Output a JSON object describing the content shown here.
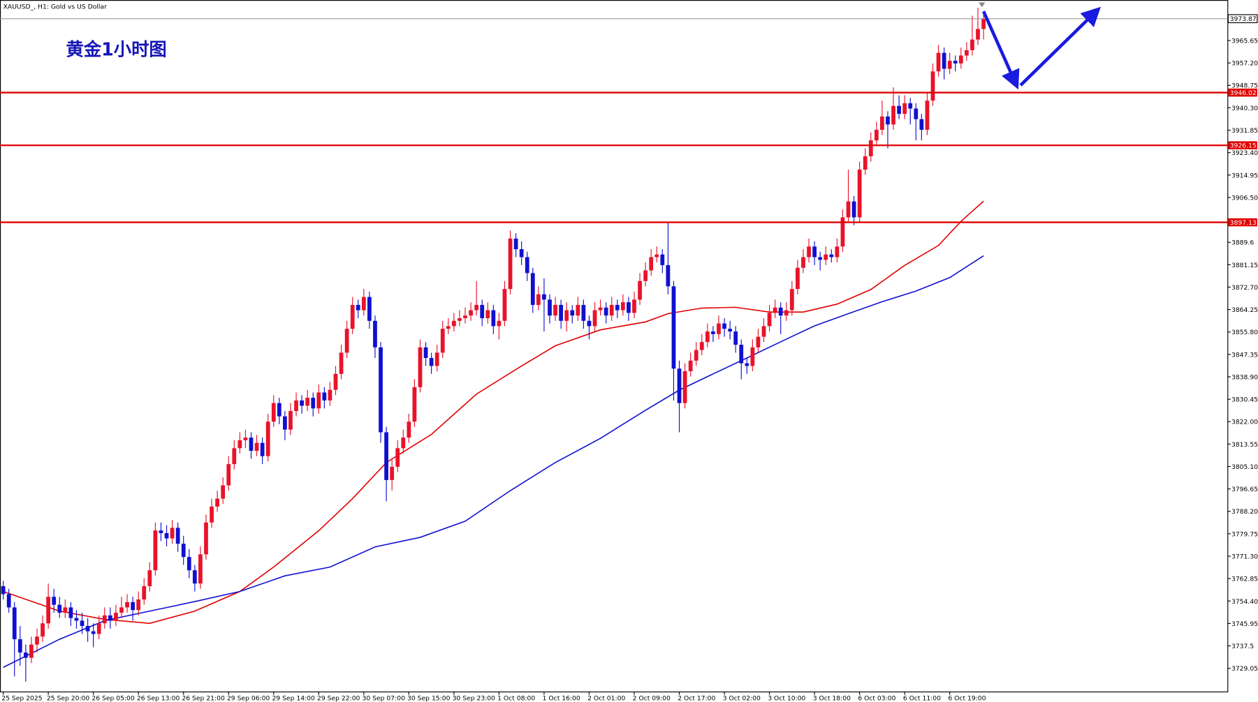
{
  "chart_data": {
    "type": "candlestick",
    "header": "XAUUSD_, H1:  Gold vs US Dollar",
    "title": "黄金1小时图",
    "up_color": "#e8132a",
    "down_color": "#1010d0",
    "ylim": [
      3720.3,
      3980.9
    ],
    "yticks": [
      3729.05,
      3737.5,
      {
        "value": 3745.95,
        "label": "3745.95"
      },
      {
        "value": 3754.4,
        "label": "3754.40"
      },
      3762.85,
      {
        "value": 3771.3,
        "label": "3771.30"
      },
      3779.75,
      {
        "value": 3788.2,
        "label": "3788.20"
      },
      3796.65,
      {
        "value": 3805.1,
        "label": "3805.10"
      },
      3813.55,
      {
        "value": 3822,
        "label": "3822.00"
      },
      3830.45,
      {
        "value": 3838.9,
        "label": "3838.90"
      },
      3847.35,
      {
        "value": 3855.8,
        "label": "3855.80"
      },
      3864.25,
      {
        "value": 3872.7,
        "label": "3872.70"
      },
      3881.15,
      3889.6,
      {
        "value": 3906.5,
        "label": "3906.50"
      },
      3914.95,
      {
        "value": 3923.4,
        "label": "3923.40"
      },
      3931.85,
      {
        "value": 3940.3,
        "label": "3940.30"
      },
      3948.75,
      {
        "value": 3957.2,
        "label": "3957.20"
      },
      3965.65
    ],
    "current_price": 3973.87,
    "levels": [
      {
        "value": 3946.02,
        "color": "#e00000"
      },
      {
        "value": 3926.15,
        "color": "#e00000"
      },
      {
        "value": 3897.13,
        "color": "#e00000"
      }
    ],
    "categories": [
      "25 Sep 2025",
      null,
      null,
      null,
      null,
      null,
      null,
      null,
      "25 Sep 20:00",
      null,
      null,
      null,
      null,
      null,
      null,
      null,
      "26 Sep 05:00",
      null,
      null,
      null,
      null,
      null,
      null,
      null,
      "26 Sep 13:00",
      null,
      null,
      null,
      null,
      null,
      null,
      null,
      "26 Sep 21:00",
      null,
      null,
      null,
      null,
      null,
      null,
      null,
      "29 Sep 06:00",
      null,
      null,
      null,
      null,
      null,
      null,
      null,
      "29 Sep 14:00",
      null,
      null,
      null,
      null,
      null,
      null,
      null,
      "29 Sep 22:00",
      null,
      null,
      null,
      null,
      null,
      null,
      null,
      "30 Sep 07:00",
      null,
      null,
      null,
      null,
      null,
      null,
      null,
      "30 Sep 15:00",
      null,
      null,
      null,
      null,
      null,
      null,
      null,
      "30 Sep 23:00",
      null,
      null,
      null,
      null,
      null,
      null,
      null,
      "1 Oct 08:00",
      null,
      null,
      null,
      null,
      null,
      null,
      null,
      "1 Oct 16:00",
      null,
      null,
      null,
      null,
      null,
      null,
      null,
      "2 Oct 01:00",
      null,
      null,
      null,
      null,
      null,
      null,
      null,
      "2 Oct 09:00",
      null,
      null,
      null,
      null,
      null,
      null,
      null,
      "2 Oct 17:00",
      null,
      null,
      null,
      null,
      null,
      null,
      null,
      "3 Oct 02:00",
      null,
      null,
      null,
      null,
      null,
      null,
      null,
      "3 Oct 10:00",
      null,
      null,
      null,
      null,
      null,
      null,
      null,
      "3 Oct 18:00",
      null,
      null,
      null,
      null,
      null,
      null,
      null,
      "6 Oct 03:00",
      null,
      null,
      null,
      null,
      null,
      null,
      null,
      "6 Oct 11:00",
      null,
      null,
      null,
      null,
      null,
      null,
      null,
      "6 Oct 19:00",
      null,
      null,
      null,
      null,
      null,
      null
    ],
    "ohlc": [
      [
        3760,
        3762,
        3755,
        3757
      ],
      [
        3757,
        3759,
        3750,
        3752
      ],
      [
        3752,
        3754,
        3726,
        3740
      ],
      [
        3740,
        3745,
        3730,
        3735
      ],
      [
        3735,
        3738,
        3724,
        3733
      ],
      [
        3733,
        3741,
        3731,
        3738
      ],
      [
        3738,
        3744,
        3735,
        3741
      ],
      [
        3741,
        3749,
        3739,
        3746
      ],
      [
        3746,
        3761,
        3744,
        3756
      ],
      [
        3756,
        3759,
        3750,
        3753
      ],
      [
        3753,
        3756,
        3748,
        3750
      ],
      [
        3750,
        3755,
        3748,
        3752
      ],
      [
        3752,
        3754,
        3745,
        3748
      ],
      [
        3748,
        3751,
        3744,
        3747
      ],
      [
        3747,
        3750,
        3742,
        3745
      ],
      [
        3745,
        3748,
        3739,
        3743
      ],
      [
        3743,
        3746,
        3737,
        3742
      ],
      [
        3742,
        3749,
        3740,
        3746
      ],
      [
        3746,
        3752,
        3744,
        3749
      ],
      [
        3749,
        3752,
        3744,
        3747
      ],
      [
        3747,
        3753,
        3745,
        3750
      ],
      [
        3750,
        3756,
        3748,
        3752
      ],
      [
        3752,
        3757,
        3750,
        3754
      ],
      [
        3754,
        3756,
        3747,
        3751
      ],
      [
        3751,
        3758,
        3749,
        3755
      ],
      [
        3755,
        3763,
        3753,
        3760
      ],
      [
        3760,
        3769,
        3758,
        3766
      ],
      [
        3766,
        3784,
        3764,
        3781
      ],
      [
        3781,
        3784,
        3777,
        3780
      ],
      [
        3780,
        3783,
        3775,
        3778
      ],
      [
        3778,
        3785,
        3776,
        3782
      ],
      [
        3782,
        3784,
        3773,
        3776
      ],
      [
        3776,
        3779,
        3768,
        3771
      ],
      [
        3771,
        3774,
        3763,
        3766
      ],
      [
        3766,
        3768,
        3758,
        3761
      ],
      [
        3761,
        3775,
        3759,
        3772
      ],
      [
        3772,
        3787,
        3770,
        3784
      ],
      [
        3784,
        3793,
        3782,
        3790
      ],
      [
        3790,
        3796,
        3788,
        3793
      ],
      [
        3793,
        3801,
        3791,
        3798
      ],
      [
        3798,
        3809,
        3796,
        3806
      ],
      [
        3806,
        3815,
        3804,
        3812
      ],
      [
        3812,
        3818,
        3810,
        3815
      ],
      [
        3815,
        3819,
        3812,
        3816
      ],
      [
        3816,
        3818,
        3808,
        3811
      ],
      [
        3811,
        3817,
        3809,
        3814
      ],
      [
        3814,
        3816,
        3806,
        3809
      ],
      [
        3809,
        3825,
        3807,
        3822
      ],
      [
        3822,
        3832,
        3820,
        3829
      ],
      [
        3829,
        3831,
        3821,
        3824
      ],
      [
        3824,
        3826,
        3815,
        3819
      ],
      [
        3819,
        3829,
        3817,
        3826
      ],
      [
        3826,
        3833,
        3824,
        3830
      ],
      [
        3830,
        3832,
        3825,
        3828
      ],
      [
        3828,
        3834,
        3826,
        3831
      ],
      [
        3831,
        3833,
        3824,
        3827
      ],
      [
        3827,
        3836,
        3825,
        3833
      ],
      [
        3833,
        3835,
        3827,
        3830
      ],
      [
        3830,
        3837,
        3828,
        3834
      ],
      [
        3834,
        3843,
        3832,
        3840
      ],
      [
        3840,
        3851,
        3838,
        3848
      ],
      [
        3848,
        3860,
        3846,
        3857
      ],
      [
        3857,
        3869,
        3855,
        3866
      ],
      [
        3866,
        3868,
        3861,
        3864
      ],
      [
        3864,
        3872,
        3862,
        3869
      ],
      [
        3869,
        3871,
        3857,
        3860
      ],
      [
        3860,
        3862,
        3846,
        3850
      ],
      [
        3850,
        3852,
        3814,
        3818
      ],
      [
        3818,
        3820,
        3792,
        3800
      ],
      [
        3800,
        3808,
        3796,
        3805
      ],
      [
        3805,
        3815,
        3803,
        3812
      ],
      [
        3812,
        3819,
        3810,
        3816
      ],
      [
        3816,
        3825,
        3814,
        3822
      ],
      [
        3822,
        3838,
        3820,
        3835
      ],
      [
        3835,
        3853,
        3833,
        3850
      ],
      [
        3850,
        3852,
        3843,
        3846
      ],
      [
        3846,
        3848,
        3840,
        3843
      ],
      [
        3843,
        3851,
        3841,
        3848
      ],
      [
        3848,
        3860,
        3846,
        3857
      ],
      [
        3857,
        3861,
        3855,
        3858
      ],
      [
        3858,
        3863,
        3856,
        3860
      ],
      [
        3860,
        3864,
        3858,
        3861
      ],
      [
        3861,
        3865,
        3859,
        3862
      ],
      [
        3862,
        3867,
        3860,
        3864
      ],
      [
        3864,
        3875,
        3862,
        3866
      ],
      [
        3866,
        3868,
        3858,
        3861
      ],
      [
        3861,
        3867,
        3859,
        3864
      ],
      [
        3864,
        3866,
        3855,
        3858
      ],
      [
        3858,
        3863,
        3853,
        3860
      ],
      [
        3860,
        3875,
        3858,
        3872
      ],
      [
        3872,
        3894,
        3870,
        3891
      ],
      [
        3891,
        3893,
        3884,
        3887
      ],
      [
        3887,
        3890,
        3881,
        3884
      ],
      [
        3884,
        3886,
        3875,
        3878
      ],
      [
        3878,
        3880,
        3863,
        3866
      ],
      [
        3866,
        3873,
        3864,
        3870
      ],
      [
        3870,
        3876,
        3856,
        3868
      ],
      [
        3868,
        3870,
        3859,
        3862
      ],
      [
        3862,
        3869,
        3860,
        3866
      ],
      [
        3866,
        3868,
        3857,
        3860
      ],
      [
        3860,
        3867,
        3856,
        3864
      ],
      [
        3864,
        3866,
        3859,
        3862
      ],
      [
        3862,
        3869,
        3860,
        3866
      ],
      [
        3866,
        3868,
        3857,
        3860
      ],
      [
        3860,
        3862,
        3853,
        3858
      ],
      [
        3858,
        3867,
        3856,
        3864
      ],
      [
        3864,
        3868,
        3862,
        3865
      ],
      [
        3865,
        3867,
        3859,
        3862
      ],
      [
        3862,
        3869,
        3860,
        3866
      ],
      [
        3866,
        3868,
        3861,
        3864
      ],
      [
        3864,
        3870,
        3862,
        3867
      ],
      [
        3867,
        3869,
        3860,
        3863
      ],
      [
        3863,
        3871,
        3861,
        3868
      ],
      [
        3868,
        3878,
        3866,
        3875
      ],
      [
        3875,
        3882,
        3873,
        3879
      ],
      [
        3879,
        3887,
        3877,
        3884
      ],
      [
        3884,
        3888,
        3882,
        3885
      ],
      [
        3885,
        3887,
        3878,
        3881
      ],
      [
        3881,
        3897,
        3870,
        3873
      ],
      [
        3873,
        3875,
        3830,
        3842
      ],
      [
        3842,
        3845,
        3818,
        3829
      ],
      [
        3829,
        3844,
        3827,
        3841
      ],
      [
        3841,
        3848,
        3839,
        3845
      ],
      [
        3845,
        3852,
        3843,
        3849
      ],
      [
        3849,
        3855,
        3847,
        3852
      ],
      [
        3852,
        3859,
        3850,
        3856
      ],
      [
        3856,
        3858,
        3852,
        3855
      ],
      [
        3855,
        3862,
        3853,
        3859
      ],
      [
        3859,
        3861,
        3854,
        3857
      ],
      [
        3857,
        3860,
        3853,
        3856
      ],
      [
        3856,
        3858,
        3848,
        3851
      ],
      [
        3851,
        3853,
        3838,
        3844
      ],
      [
        3844,
        3846,
        3840,
        3843
      ],
      [
        3843,
        3853,
        3841,
        3850
      ],
      [
        3850,
        3857,
        3848,
        3854
      ],
      [
        3854,
        3861,
        3852,
        3858
      ],
      [
        3858,
        3866,
        3856,
        3863
      ],
      [
        3863,
        3868,
        3861,
        3865
      ],
      [
        3865,
        3867,
        3855,
        3862
      ],
      [
        3862,
        3867,
        3860,
        3864
      ],
      [
        3864,
        3875,
        3862,
        3872
      ],
      [
        3872,
        3883,
        3870,
        3880
      ],
      [
        3880,
        3887,
        3878,
        3884
      ],
      [
        3884,
        3891,
        3882,
        3888
      ],
      [
        3888,
        3890,
        3881,
        3884
      ],
      [
        3884,
        3886,
        3879,
        3883
      ],
      [
        3883,
        3888,
        3881,
        3885
      ],
      [
        3885,
        3887,
        3882,
        3884
      ],
      [
        3884,
        3891,
        3882,
        3888
      ],
      [
        3888,
        3902,
        3886,
        3899
      ],
      [
        3899,
        3917,
        3897,
        3905
      ],
      [
        3905,
        3907,
        3896,
        3899
      ],
      [
        3899,
        3920,
        3897,
        3917
      ],
      [
        3917,
        3925,
        3915,
        3922
      ],
      [
        3922,
        3931,
        3920,
        3928
      ],
      [
        3928,
        3935,
        3926,
        3932
      ],
      [
        3932,
        3943,
        3930,
        3937
      ],
      [
        3937,
        3939,
        3925,
        3934
      ],
      [
        3934,
        3948,
        3932,
        3941
      ],
      [
        3941,
        3945,
        3936,
        3938
      ],
      [
        3938,
        3945,
        3936,
        3942
      ],
      [
        3942,
        3944,
        3934,
        3940
      ],
      [
        3940,
        3942,
        3928,
        3936
      ],
      [
        3936,
        3938,
        3928,
        3932
      ],
      [
        3932,
        3946,
        3930,
        3943
      ],
      [
        3943,
        3957,
        3941,
        3954
      ],
      [
        3954,
        3964,
        3952,
        3961
      ],
      [
        3961,
        3963,
        3951,
        3955
      ],
      [
        3955,
        3961,
        3953,
        3958
      ],
      [
        3958,
        3960,
        3954,
        3957
      ],
      [
        3957,
        3963,
        3955,
        3960
      ],
      [
        3960,
        3965,
        3958,
        3962
      ],
      [
        3962,
        3975,
        3960,
        3966
      ],
      [
        3966,
        3978,
        3964,
        3970
      ],
      [
        3970,
        3976,
        3966,
        3973.87
      ]
    ],
    "moving_averages": [
      {
        "color": "#e00000",
        "x": [
          0,
          10,
          18,
          26,
          34,
          42,
          48,
          56,
          62,
          68,
          76,
          84,
          92,
          98,
          106,
          114,
          118,
          124,
          130,
          136,
          142,
          148,
          154,
          160,
          166,
          170,
          174
        ],
        "values": [
          3758,
          3750.6,
          3747.5,
          3746,
          3750.6,
          3758,
          3767.2,
          3780.9,
          3793,
          3806.6,
          3817.2,
          3832.4,
          3843,
          3850.6,
          3856.6,
          3859.6,
          3862.7,
          3864.8,
          3865.1,
          3863.3,
          3863.3,
          3866.3,
          3871.8,
          3880.9,
          3888.4,
          3897.5,
          3905.1
        ]
      },
      {
        "color": "#1010d0",
        "x": [
          0,
          10,
          18,
          26,
          34,
          42,
          50,
          58,
          66,
          74,
          82,
          90,
          98,
          106,
          114,
          120,
          126,
          132,
          138,
          144,
          150,
          156,
          162,
          168,
          174
        ],
        "values": [
          3729.4,
          3740,
          3747,
          3750.6,
          3754.2,
          3758,
          3763.9,
          3767.2,
          3774.8,
          3778.4,
          3784.5,
          3796,
          3806.6,
          3815.7,
          3826.3,
          3833.9,
          3840,
          3846,
          3852.1,
          3858.1,
          3862.7,
          3867.2,
          3871.2,
          3876.3,
          3884.5
        ]
      }
    ]
  }
}
